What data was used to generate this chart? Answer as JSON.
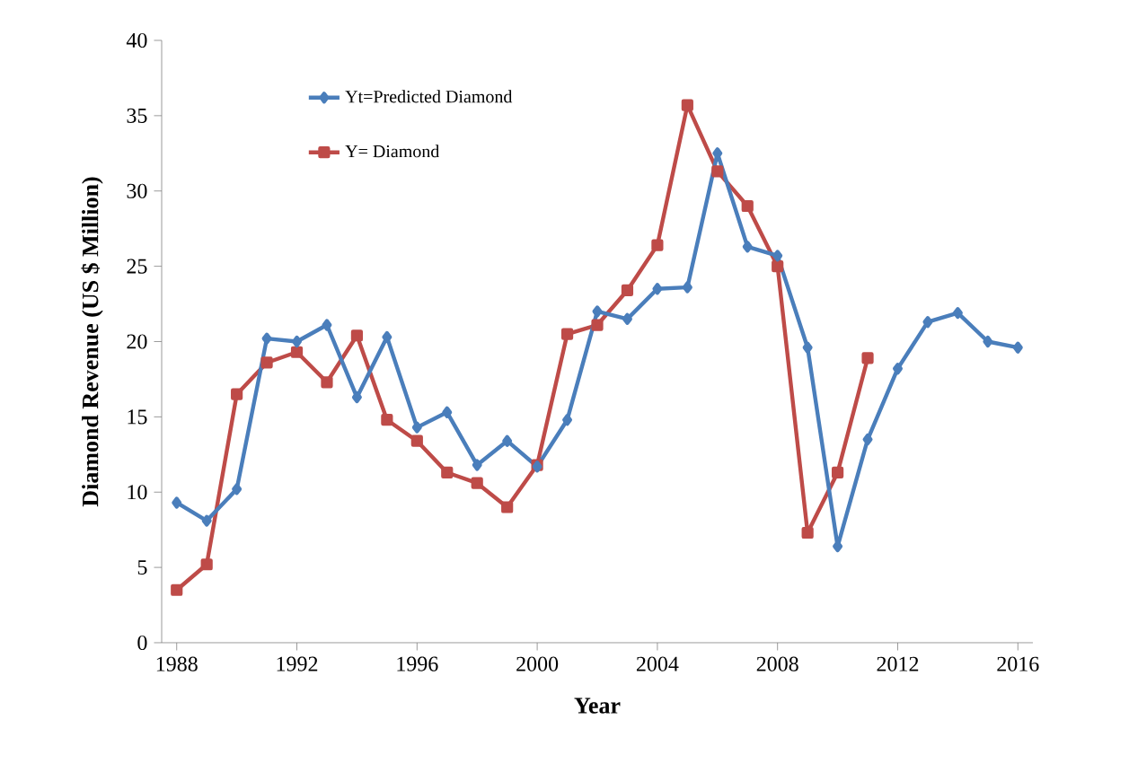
{
  "chart_data": {
    "type": "line",
    "xlabel": "Year",
    "ylabel": "Diamond Revenue (US $ Million)",
    "xlim": [
      1987.5,
      2016.5
    ],
    "ylim": [
      0,
      40
    ],
    "xticks": [
      1988,
      1992,
      1996,
      2000,
      2004,
      2008,
      2012,
      2016
    ],
    "yticks": [
      0,
      5,
      10,
      15,
      20,
      25,
      30,
      35,
      40
    ],
    "legend": "top left",
    "grid": false,
    "series": [
      {
        "name": "Yt=Predicted Diamond",
        "color": "#4a7ebb",
        "marker": "diamond",
        "x": [
          1988,
          1989,
          1990,
          1991,
          1992,
          1993,
          1994,
          1995,
          1996,
          1997,
          1998,
          1999,
          2000,
          2001,
          2002,
          2003,
          2004,
          2005,
          2006,
          2007,
          2008,
          2009,
          2010,
          2011,
          2012,
          2013,
          2014,
          2015,
          2016
        ],
        "values": [
          9.3,
          8.1,
          10.2,
          20.2,
          20.0,
          21.1,
          16.3,
          20.3,
          14.3,
          15.3,
          11.8,
          13.4,
          11.7,
          14.8,
          22.0,
          21.5,
          23.5,
          23.6,
          32.5,
          26.3,
          25.7,
          19.6,
          6.4,
          13.5,
          18.2,
          21.3,
          21.9,
          20.0,
          19.6
        ]
      },
      {
        "name": "Y= Diamond",
        "color": "#be4b48",
        "marker": "square",
        "x": [
          1988,
          1989,
          1990,
          1991,
          1992,
          1993,
          1994,
          1995,
          1996,
          1997,
          1998,
          1999,
          2000,
          2001,
          2002,
          2003,
          2004,
          2005,
          2006,
          2007,
          2008,
          2009,
          2010,
          2011
        ],
        "values": [
          3.5,
          5.2,
          16.5,
          18.6,
          19.3,
          17.3,
          20.4,
          14.8,
          13.4,
          11.3,
          10.6,
          9.0,
          11.8,
          20.5,
          21.1,
          23.4,
          26.4,
          35.7,
          31.3,
          29.0,
          25.0,
          7.3,
          11.3,
          18.9
        ]
      }
    ]
  }
}
